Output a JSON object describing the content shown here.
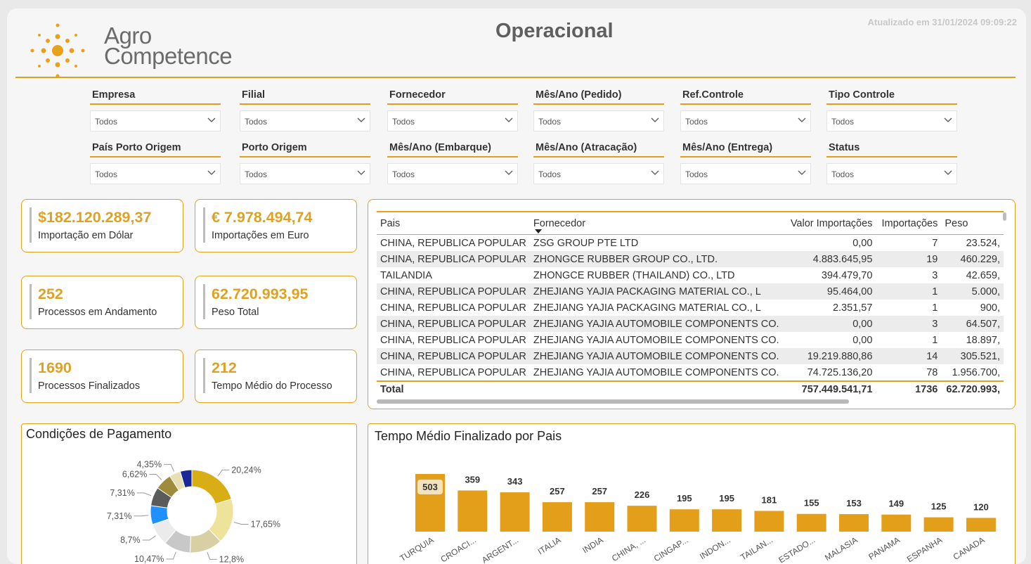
{
  "brand": {
    "line1": "Agro",
    "line2": "Competence"
  },
  "header": {
    "title": "Operacional",
    "updated": "Atualizado em 31/01/2024 09:09:22"
  },
  "filters": [
    {
      "label": "Empresa",
      "value": "Todos"
    },
    {
      "label": "Filial",
      "value": "Todos"
    },
    {
      "label": "Fornecedor",
      "value": "Todos"
    },
    {
      "label": "Mês/Ano (Pedido)",
      "value": "Todos"
    },
    {
      "label": "Ref.Controle",
      "value": "Todos"
    },
    {
      "label": "Tipo Controle",
      "value": "Todos"
    },
    {
      "label": "País Porto Origem",
      "value": "Todos"
    },
    {
      "label": "Porto Origem",
      "value": "Todos"
    },
    {
      "label": "Mês/Ano (Embarque)",
      "value": "Todos"
    },
    {
      "label": "Mês/Ano (Atracação)",
      "value": "Todos"
    },
    {
      "label": "Mês/Ano (Entrega)",
      "value": "Todos"
    },
    {
      "label": "Status",
      "value": "Todos"
    }
  ],
  "kpis": [
    {
      "value": "$182.120.289,37",
      "label": "Importação em Dólar"
    },
    {
      "value": "€ 7.978.494,74",
      "label": "Importações em Euro"
    },
    {
      "value": "252",
      "label": "Processos em Andamento"
    },
    {
      "value": "62.720.993,95",
      "label": "Peso Total"
    },
    {
      "value": "1690",
      "label": "Processos Finalizados"
    },
    {
      "value": "212",
      "label": "Tempo Médio do Processo"
    }
  ],
  "table": {
    "columns": [
      "Pais",
      "Fornecedor",
      "Valor Importações",
      "Importações",
      "Peso"
    ],
    "rows": [
      [
        "CHINA, REPUBLICA POPULAR",
        "ZSG GROUP PTE LTD",
        "0,00",
        "7",
        "23.524,"
      ],
      [
        "CHINA, REPUBLICA POPULAR",
        "ZHONGCE RUBBER GROUP CO., LTD.",
        "4.883.645,95",
        "19",
        "460.229,"
      ],
      [
        "TAILANDIA",
        "ZHONGCE RUBBER (THAILAND) CO., LTD",
        "394.479,70",
        "3",
        "42.659,"
      ],
      [
        "CHINA, REPUBLICA POPULAR",
        "ZHEJIANG YAJIA PACKAGING MATERIAL CO., L",
        "95.464,00",
        "1",
        "5.000,"
      ],
      [
        "CHINA, REPUBLICA POPULAR",
        "ZHEJIANG YAJIA PACKAGING MATERIAL CO., L",
        "2.351,57",
        "1",
        "900,"
      ],
      [
        "CHINA, REPUBLICA POPULAR",
        "ZHEJIANG YAJIA AUTOMOBILE COMPONENTS CO.",
        "0,00",
        "3",
        "64.507,"
      ],
      [
        "CHINA, REPUBLICA POPULAR",
        "ZHEJIANG YAJIA AUTOMOBILE COMPONENTS CO.",
        "0,00",
        "1",
        "18.897,"
      ],
      [
        "CHINA, REPUBLICA POPULAR",
        "ZHEJIANG YAJIA AUTOMOBILE COMPONENTS CO.",
        "19.219.880,86",
        "14",
        "305.521,"
      ],
      [
        "CHINA, REPUBLICA POPULAR",
        "ZHEJIANG YAJIA AUTOMOBILE COMPONENTS CO.",
        "74.725.136,20",
        "78",
        "1.956.700,"
      ]
    ],
    "total": [
      "Total",
      "",
      "757.449.541,71",
      "1736",
      "62.720.993,"
    ]
  },
  "chart_data": [
    {
      "type": "pie",
      "title": "Condições de Pagamento",
      "values": [
        20.24,
        17.65,
        12.8,
        10.47,
        8.7,
        7.31,
        7.31,
        6.62,
        4.35,
        4.55
      ],
      "labels": [
        "20,24%",
        "17,65%",
        "12,8%",
        "10,47%",
        "8,7%",
        "7,31%",
        "7,31%",
        "6,62%",
        "4,35%",
        ""
      ],
      "colors": [
        "#d9ae14",
        "#ede39a",
        "#d8cfa4",
        "#c8c8c8",
        "#ebebeb",
        "#1e90ff",
        "#5b5b5b",
        "#9e8b3c",
        "#e8dfb2",
        "#1a2799"
      ],
      "legend": "none"
    },
    {
      "type": "bar",
      "title": "Tempo Médio Finalizado por Pais",
      "categories": [
        "TURQUIA",
        "CROACI...",
        "ARGENT...",
        "ITALIA",
        "INDIA",
        "CHINA, ...",
        "CINGAP...",
        "INDON...",
        "TAILAN...",
        "ESTADO...",
        "MALASIA",
        "PANAMA",
        "ESPANHA",
        "CANADA"
      ],
      "values": [
        503,
        359,
        343,
        257,
        257,
        226,
        195,
        195,
        181,
        155,
        153,
        149,
        125,
        120
      ],
      "color": "#e39f1a",
      "ylim": [
        0,
        503
      ]
    }
  ]
}
